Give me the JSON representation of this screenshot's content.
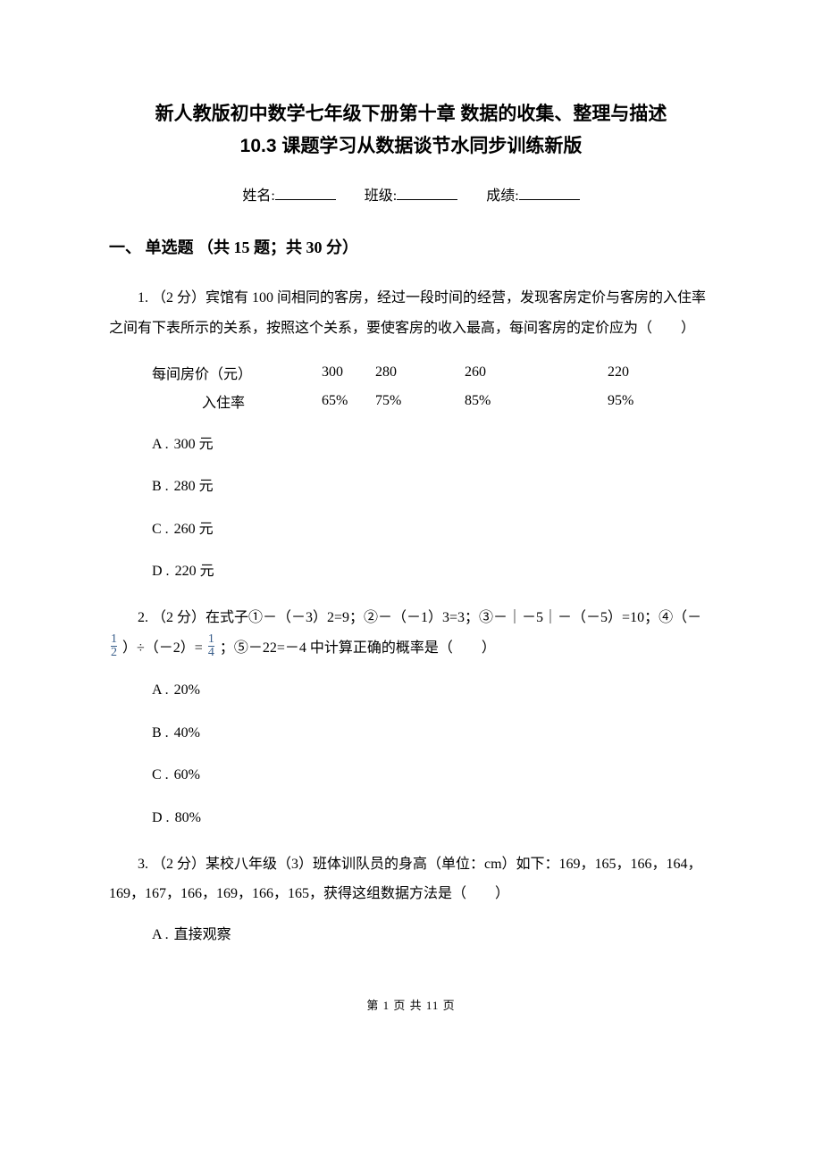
{
  "title_main": "新人教版初中数学七年级下册第十章 数据的收集、整理与描述",
  "title_sub": "10.3 课题学习从数据谈节水同步训练新版",
  "form": {
    "name_label": "姓名:",
    "class_label": "班级:",
    "score_label": "成绩:"
  },
  "section1": {
    "header": "一、 单选题 （共 15 题；共 30 分）",
    "q1": {
      "text": "1.  （2 分）宾馆有 100 间相同的客房，经过一段时间的经营，发现客房定价与客房的入住率之间有下表所示的关系，按照这个关系，要使客房的收入最高，每间客房的定价应为（　　）",
      "table": {
        "header": "每间房价（元）",
        "row2_label": "入住率",
        "prices": [
          "300",
          "280",
          "260",
          "220"
        ],
        "rates": [
          "65%",
          "75%",
          "85%",
          "95%"
        ]
      },
      "options": {
        "a": "300 元",
        "b": "280 元",
        "c": "260 元",
        "d": "220 元"
      }
    },
    "q2": {
      "line1": "2.  （2 分）在式子①－（－3）2=9；②－（－1）3=3；③－｜－5｜－（－5）=10；④（－",
      "frac1": {
        "num": "1",
        "den": "2"
      },
      "mid": " ）÷（－2）= ",
      "frac2": {
        "num": "1",
        "den": "4"
      },
      "line2_end": " ；⑤－22=－4 中计算正确的概率是（　　）",
      "options": {
        "a": "20%",
        "b": "40%",
        "c": "60%",
        "d": "80%"
      }
    },
    "q3": {
      "text": "3.  （2 分）某校八年级（3）班体训队员的身高（单位：cm）如下：169，165，166，164，169，167，166，169，166，165，获得这组数据方法是（　　）",
      "options": {
        "a": "直接观察"
      }
    }
  },
  "footer": "第 1 页 共 11 页"
}
